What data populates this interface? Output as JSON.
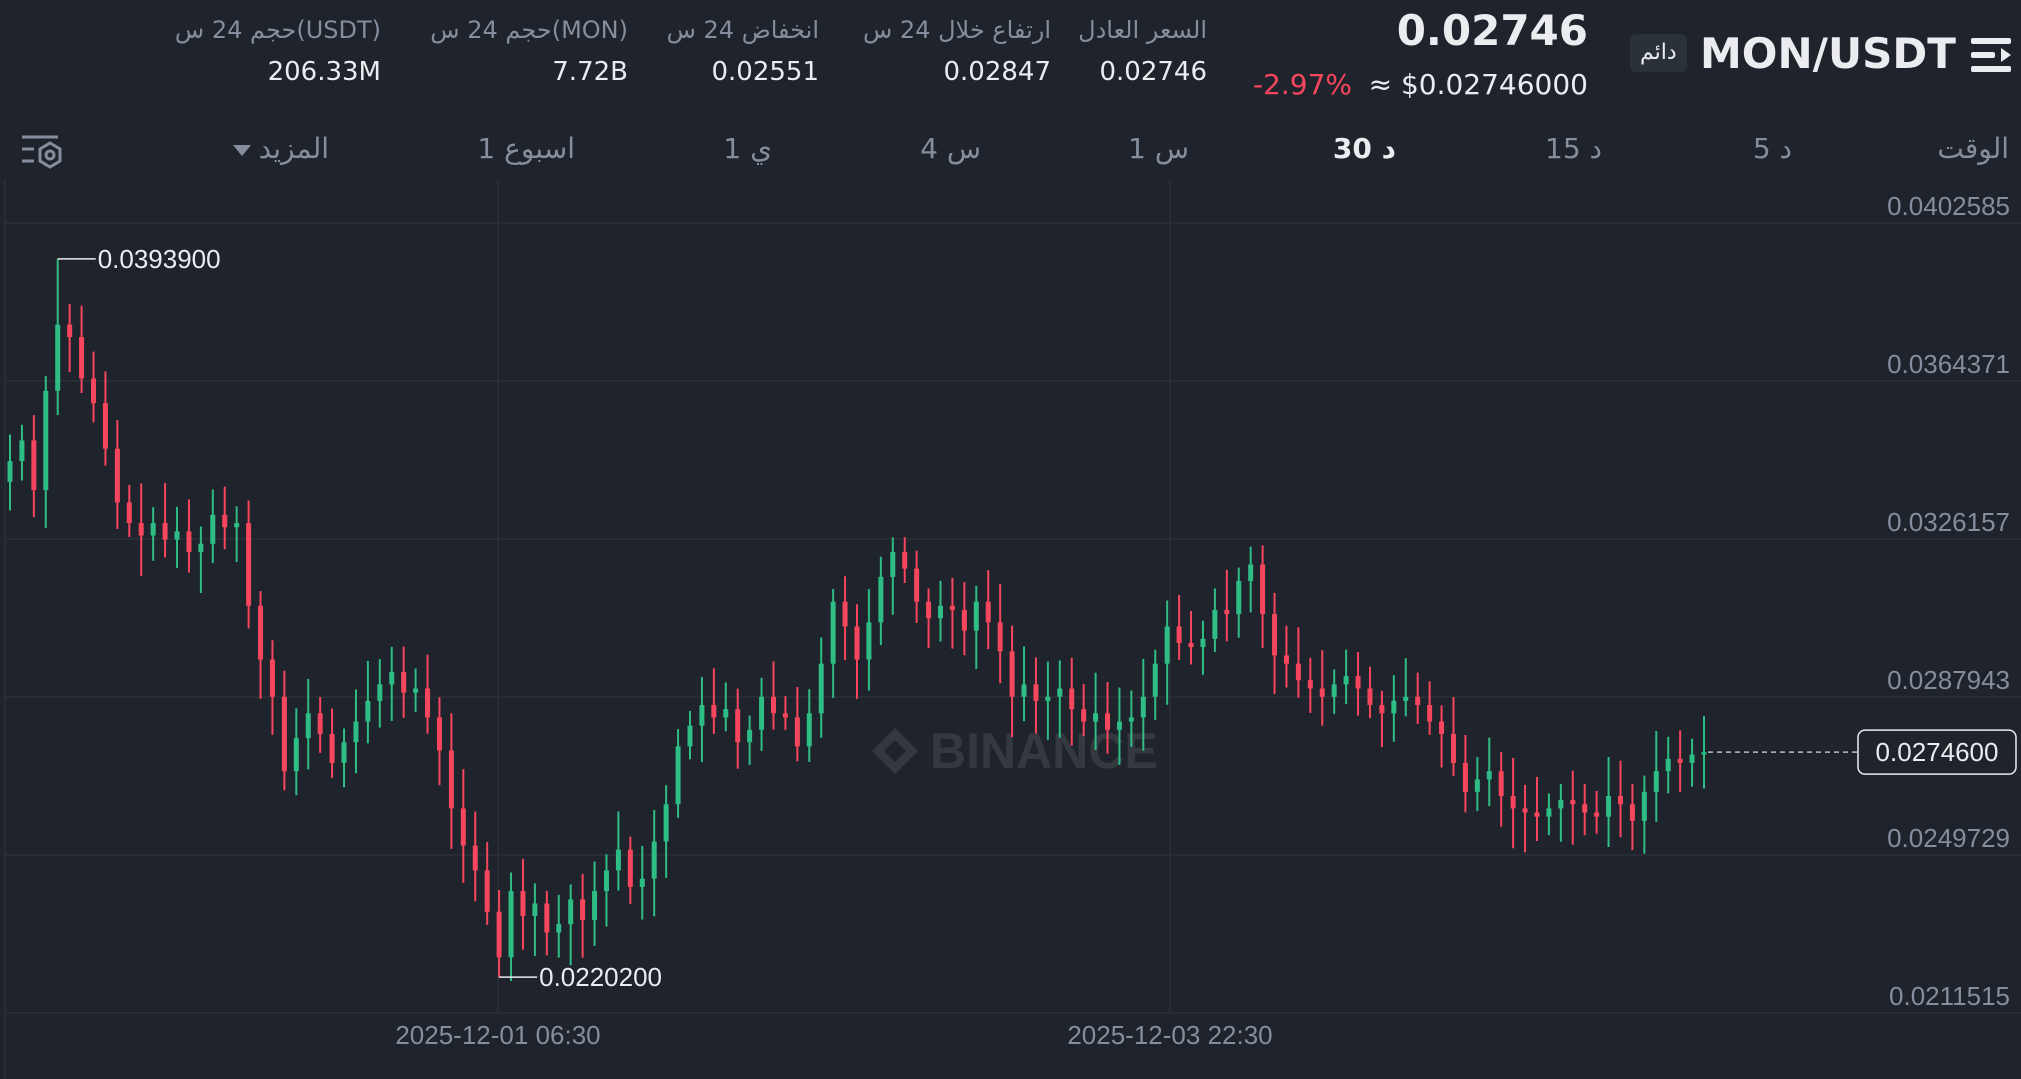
{
  "header": {
    "pair": "MON/USDT",
    "contract_badge": "دائم",
    "last_price": "0.02746",
    "usd_price": "≈ $0.02746000",
    "change_pct": "-2.97%",
    "stats": [
      {
        "label": "السعر العادل",
        "value": "0.02746"
      },
      {
        "label": "ارتفاع خلال 24 س",
        "value": "0.02847"
      },
      {
        "label": "انخفاض 24 س",
        "value": "0.02551"
      },
      {
        "label": "حجم 24 س(MON)",
        "value": "7.72B"
      },
      {
        "label": "حجم 24 س(USDT)",
        "value": "206.33M"
      }
    ]
  },
  "toolbar": {
    "time_label": "الوقت",
    "intervals": [
      "5 د",
      "15 د",
      "30 د",
      "1 س",
      "4 س",
      "1 ي",
      "1 اسبوع"
    ],
    "active_interval": "30 د",
    "more_label": "المزيد"
  },
  "colors": {
    "up": "#2ebd85",
    "down": "#f6465d",
    "bg": "#1f232b",
    "grid": "#2b3139",
    "axis_text": "#848e9c"
  },
  "icons": [
    "menu-icon",
    "chart-settings-icon",
    "binance-logo-watermark"
  ],
  "chart_data": {
    "type": "candlestick",
    "watermark": "BINANCE",
    "y_ticks": [
      "0.0402585",
      "0.0364371",
      "0.0326157",
      "0.0287943",
      "0.0249729",
      "0.0211515"
    ],
    "ylim": [
      0.0211515,
      0.0402585
    ],
    "x_ticks": [
      "2025-12-01 06:30",
      "2025-12-03 22:30"
    ],
    "current_price_label": "0.0274600",
    "current_price": 0.02746,
    "max_label": "0.0393900",
    "max_value": 0.03939,
    "min_label": "0.0220200",
    "min_value": 0.02202,
    "close_path": [
      0.0345,
      0.035,
      0.0338,
      0.0362,
      0.0378,
      0.0375,
      0.0365,
      0.0359,
      0.0348,
      0.0335,
      0.033,
      0.0327,
      0.033,
      0.0326,
      0.0328,
      0.0323,
      0.0325,
      0.0332,
      0.0329,
      0.033,
      0.031,
      0.0297,
      0.0288,
      0.027,
      0.0278,
      0.0284,
      0.0279,
      0.0272,
      0.0277,
      0.0282,
      0.0287,
      0.0291,
      0.0294,
      0.0289,
      0.029,
      0.0283,
      0.0275,
      0.0261,
      0.0252,
      0.0246,
      0.0236,
      0.0225,
      0.0241,
      0.0235,
      0.0238,
      0.0231,
      0.0233,
      0.0239,
      0.0234,
      0.0241,
      0.0246,
      0.0251,
      0.0242,
      0.0244,
      0.0253,
      0.0262,
      0.0276,
      0.0281,
      0.0286,
      0.0283,
      0.0285,
      0.0277,
      0.028,
      0.0288,
      0.0284,
      0.0283,
      0.0276,
      0.0284,
      0.0296,
      0.0311,
      0.0305,
      0.0297,
      0.0306,
      0.0317,
      0.0323,
      0.0319,
      0.0311,
      0.0307,
      0.031,
      0.0309,
      0.0304,
      0.0311,
      0.0306,
      0.0299,
      0.0288,
      0.0291,
      0.0287,
      0.0288,
      0.029,
      0.0285,
      0.0282,
      0.0284,
      0.028,
      0.0282,
      0.0283,
      0.0288,
      0.0296,
      0.0305,
      0.0301,
      0.03,
      0.0302,
      0.0309,
      0.0308,
      0.0316,
      0.032,
      0.0308,
      0.0298,
      0.0296,
      0.0292,
      0.029,
      0.0288,
      0.0291,
      0.0293,
      0.029,
      0.0286,
      0.0284,
      0.0287,
      0.0288,
      0.0286,
      0.0282,
      0.0279,
      0.0272,
      0.0265,
      0.0268,
      0.027,
      0.0264,
      0.0261,
      0.026,
      0.0259,
      0.0261,
      0.0263,
      0.0262,
      0.026,
      0.0259,
      0.0264,
      0.0262,
      0.0258,
      0.0265,
      0.027,
      0.0273,
      0.0272,
      0.0274,
      0.02746
    ]
  }
}
